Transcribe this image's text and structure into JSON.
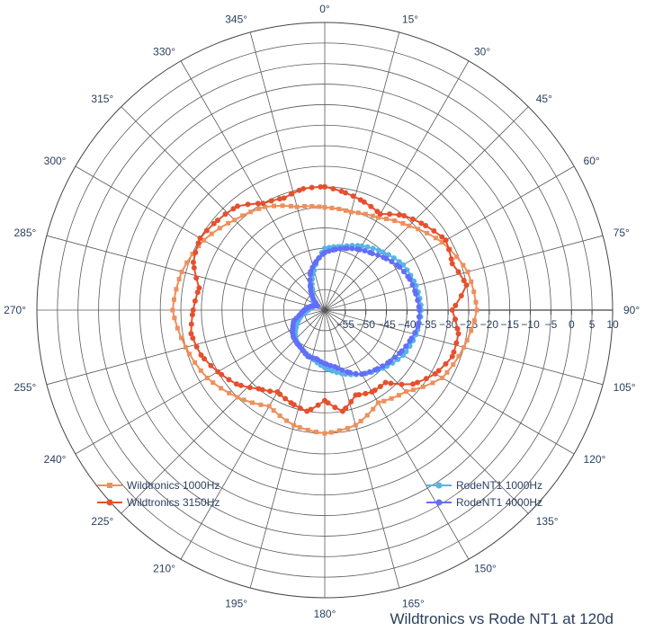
{
  "chart_data": {
    "type": "polar",
    "title": "Wildtronics vs Rode NT1 at 120d",
    "angular_axis": {
      "direction": "clockwise",
      "zero_at": "top",
      "ticks": [
        "0°",
        "15°",
        "30°",
        "45°",
        "60°",
        "75°",
        "90°",
        "105°",
        "120°",
        "135°",
        "150°",
        "165°",
        "180°",
        "195°",
        "210°",
        "225°",
        "240°",
        "255°",
        "270°",
        "285°",
        "300°",
        "315°",
        "330°",
        "345°"
      ]
    },
    "radial_axis": {
      "range": [
        -60,
        10
      ],
      "tick_angle_deg": 90,
      "ticks": [
        "−55",
        "−50",
        "−45",
        "−40",
        "−35",
        "−30",
        "−25",
        "−20",
        "−15",
        "−10",
        "−5",
        "0",
        "5",
        "10"
      ]
    },
    "legend_placement": "bottom-left and bottom-right",
    "series": [
      {
        "name": "Wildtronics 1000Hz",
        "color": "#ef8f5c",
        "marker": "square",
        "theta": [
          0,
          15,
          30,
          45,
          60,
          75,
          90,
          105,
          120,
          135,
          150,
          165,
          180,
          195,
          210,
          225,
          240,
          255,
          270,
          285,
          300,
          315,
          330,
          345,
          360
        ],
        "r": [
          -35,
          -35.3,
          -34,
          -31,
          -27,
          -24,
          -23,
          -25,
          -27,
          -32,
          -34,
          -31,
          -30,
          -31,
          -33,
          -30,
          -27,
          -25,
          -23,
          -24,
          -26,
          -29,
          -31,
          -34,
          -35
        ]
      },
      {
        "name": "Wildtronics 3150Hz",
        "color": "#e5502e",
        "marker": "circle",
        "theta": [
          0,
          10,
          20,
          30,
          40,
          50,
          60,
          70,
          80,
          90,
          100,
          110,
          120,
          130,
          140,
          150,
          160,
          170,
          180,
          190,
          200,
          210,
          220,
          230,
          240,
          250,
          260,
          270,
          280,
          290,
          300,
          310,
          320,
          330,
          340,
          350,
          360
        ],
        "r": [
          -30,
          -31,
          -32,
          -33,
          -30,
          -28,
          -26,
          -27,
          -25,
          -29,
          -27,
          -27,
          -29,
          -32,
          -37,
          -37,
          -38,
          -35,
          -38,
          -35,
          -36,
          -37,
          -35,
          -32,
          -30,
          -28,
          -27,
          -28,
          -29,
          -26,
          -25,
          -26,
          -27,
          -30,
          -31,
          -30,
          -30
        ]
      },
      {
        "name": "RodeNT1 1000Hz",
        "color": "#57b4e6",
        "marker": "circle",
        "theta": [
          0,
          15,
          30,
          45,
          60,
          75,
          90,
          105,
          120,
          135,
          150,
          165,
          180,
          195,
          210,
          225,
          240,
          255,
          270,
          285,
          300,
          315,
          330,
          345,
          360
        ],
        "r": [
          -45,
          -44,
          -42,
          -40,
          -38,
          -37,
          -36.5,
          -37,
          -38,
          -40,
          -42,
          -44,
          -46,
          -48,
          -49,
          -50,
          -52,
          -54,
          -56,
          -57,
          -57,
          -56,
          -54,
          -50,
          -45
        ]
      },
      {
        "name": "RodeNT1 4000Hz",
        "color": "#636efa",
        "marker": "circle",
        "theta": [
          0,
          10,
          20,
          30,
          40,
          50,
          60,
          70,
          80,
          90,
          100,
          110,
          120,
          130,
          140,
          150,
          160,
          170,
          180,
          190,
          200,
          210,
          220,
          230,
          240,
          250,
          260,
          270,
          280,
          290,
          300,
          310,
          320,
          330,
          340,
          350,
          360
        ],
        "r": [
          -46,
          -45,
          -44,
          -43,
          -42,
          -40.5,
          -39,
          -38,
          -37.5,
          -37,
          -37,
          -38,
          -39,
          -40,
          -41,
          -42,
          -44,
          -46,
          -47,
          -48,
          -48,
          -49,
          -49.5,
          -50,
          -51,
          -52,
          -54,
          -55,
          -56,
          -57,
          -58,
          -57,
          -55,
          -53,
          -50,
          -48,
          -46
        ]
      }
    ]
  }
}
